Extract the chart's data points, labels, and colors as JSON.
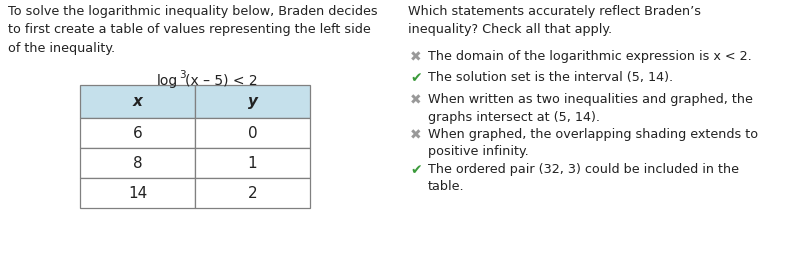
{
  "left_paragraph": "To solve the logarithmic inequality below, Braden decides\nto first create a table of values representing the left side\nof the inequality.",
  "equation_parts": [
    "log",
    "3",
    "(x – 5) < 2"
  ],
  "table_headers": [
    "x",
    "y"
  ],
  "table_rows": [
    [
      "6",
      "0"
    ],
    [
      "8",
      "1"
    ],
    [
      "14",
      "2"
    ]
  ],
  "table_header_bg": "#c5e0eb",
  "table_border_color": "#808080",
  "right_title": "Which statements accurately reflect Braden’s\ninequality? Check all that apply.",
  "statements": [
    {
      "correct": false,
      "text": "The domain of the logarithmic expression is x < 2."
    },
    {
      "correct": true,
      "text": "The solution set is the interval (5, 14)."
    },
    {
      "correct": false,
      "text": "When written as two inequalities and graphed, the\ngraphs intersect at (5, 14)."
    },
    {
      "correct": false,
      "text": "When graphed, the overlapping shading extends to\npositive infinity."
    },
    {
      "correct": true,
      "text": "The ordered pair (32, 3) could be included in the\ntable."
    }
  ],
  "icon_color_x": "#999999",
  "icon_color_check": "#3a9a3a",
  "text_color": "#222222",
  "bg_color": "#ffffff",
  "fs_para": 9.2,
  "fs_equation": 10.0,
  "fs_table_header": 11,
  "fs_table_data": 11,
  "fs_title": 9.2,
  "fs_stmt": 9.2,
  "fs_icon": 10
}
